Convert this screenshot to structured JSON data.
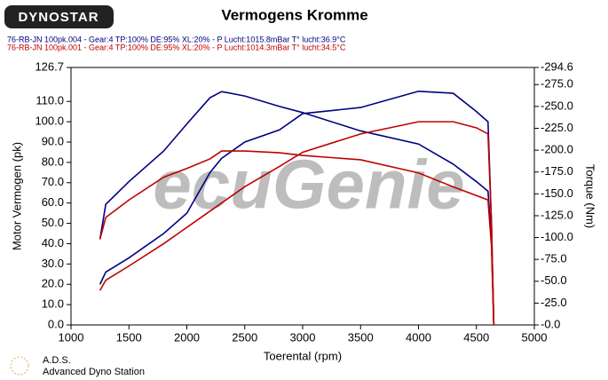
{
  "logo": "DYNOSTAR",
  "footer": {
    "short": "A.D.S.",
    "long": "Advanced Dyno Station"
  },
  "chart_data": {
    "type": "line",
    "title": "Vermogens Kromme",
    "legend": [
      {
        "text": "76-RB-JN 100pk.004 - Gear:4 TP:100% DE:95% XL:20%   - P Lucht:1015.8mBar T° lucht:36.9°C",
        "color": "#000080"
      },
      {
        "text": "76-RB-JN 100pk.001 - Gear:4 TP:100% DE:95% XL:20%   - P Lucht:1014.3mBar T° lucht:34.5°C",
        "color": "#c00000"
      }
    ],
    "watermark": "ecuGenie",
    "x_label": "Toerental (rpm)",
    "y_label": "Motor Vermogen (pk)",
    "y2_label": "Torque (Nm)",
    "x": [
      1250,
      1300,
      1500,
      1800,
      2000,
      2200,
      2300,
      2500,
      2800,
      3000,
      3500,
      4000,
      4300,
      4500,
      4600,
      4630,
      4650
    ],
    "series": [
      {
        "color": "#000080",
        "values": [
          20,
          26,
          33,
          45,
          55,
          75,
          82,
          90,
          96,
          104,
          107,
          115,
          114,
          105,
          100,
          50,
          0
        ]
      },
      {
        "color": "#000080",
        "axis": "y2",
        "values": [
          98,
          138,
          164,
          199,
          230,
          260,
          267,
          262,
          250,
          243,
          222,
          207,
          184,
          164,
          153,
          98,
          0
        ]
      },
      {
        "color": "#c00000",
        "values": [
          17,
          22,
          29,
          40,
          48,
          56,
          60,
          68,
          78,
          85,
          94,
          100,
          100,
          97,
          94,
          50,
          0
        ]
      },
      {
        "color": "#c00000",
        "axis": "y2",
        "values": [
          98,
          123,
          143,
          169,
          179,
          190,
          199,
          199,
          197,
          194,
          189,
          174,
          158,
          148,
          143,
          90,
          0
        ]
      }
    ],
    "xlim": [
      1000,
      5000
    ],
    "xticks": [
      1000,
      1500,
      2000,
      2500,
      3000,
      3500,
      4000,
      4500,
      5000
    ],
    "ylim": [
      0,
      126.7
    ],
    "yticks": [
      {
        "value": 0,
        "label": "0.0"
      },
      {
        "value": 10,
        "label": "10.0"
      },
      {
        "value": 20,
        "label": "20.0"
      },
      {
        "value": 30,
        "label": "30.0"
      },
      {
        "value": 40,
        "label": "40.0"
      },
      {
        "value": 50,
        "label": "50.0"
      },
      {
        "value": 60,
        "label": "60.0"
      },
      {
        "value": 70,
        "label": "70.0"
      },
      {
        "value": 80,
        "label": "80.0"
      },
      {
        "value": 90,
        "label": "90.0"
      },
      {
        "value": 100,
        "label": "100.0"
      },
      {
        "value": 110,
        "label": "110.0"
      },
      126.7
    ],
    "y2lim": [
      0,
      294.6
    ],
    "y2ticks": [
      {
        "value": 0,
        "label": "-0.0"
      },
      {
        "value": 25,
        "label": "-25.0"
      },
      {
        "value": 50,
        "label": "-50.0"
      },
      {
        "value": 75,
        "label": "-75.0"
      },
      {
        "value": 100,
        "label": "-100.0"
      },
      {
        "value": 125,
        "label": "-125.0"
      },
      {
        "value": 150,
        "label": "-150.0"
      },
      {
        "value": 175,
        "label": "-175.0"
      },
      {
        "value": 200,
        "label": "-200.0"
      },
      {
        "value": 225,
        "label": "-225.0"
      },
      {
        "value": 250,
        "label": "-250.0"
      },
      {
        "value": 275,
        "label": "-275.0"
      },
      {
        "value": 294.6,
        "label": "-294.6"
      }
    ]
  }
}
